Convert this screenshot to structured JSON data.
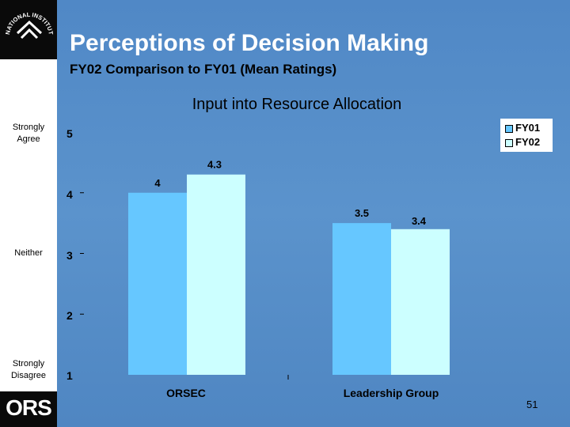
{
  "header": {
    "title": "Perceptions of Decision Making",
    "subtitle": "FY02 Comparison to FY01 (Mean Ratings)"
  },
  "sidebar": {
    "logo_text": "NATIONAL INSTITUTES OF HEALTH",
    "scale_labels": {
      "strongly_agree": "Strongly Agree",
      "neither": "Neither",
      "strongly_disagree": "Strongly Disagree"
    },
    "org_logo": "ORS"
  },
  "footer": {
    "page_number": "51"
  },
  "colors": {
    "background": "#5b8fc8",
    "fy01": "#66c7ff",
    "fy02": "#ccffff"
  },
  "chart_data": {
    "type": "bar",
    "title": "Input into Resource Allocation",
    "xlabel": "",
    "ylabel": "",
    "categories": [
      "ORSEC",
      "Leadership Group"
    ],
    "series": [
      {
        "name": "FY01",
        "values": [
          4,
          3.5
        ],
        "labels": [
          "4",
          "3.5"
        ],
        "color": "#66c7ff"
      },
      {
        "name": "FY02",
        "values": [
          4.3,
          3.4
        ],
        "labels": [
          "4.3",
          "3.4"
        ],
        "color": "#ccffff"
      }
    ],
    "ylim": [
      1,
      5
    ],
    "yticks": [
      "1",
      "2",
      "3",
      "4",
      "5"
    ],
    "legend": "top-right",
    "grid": false
  }
}
